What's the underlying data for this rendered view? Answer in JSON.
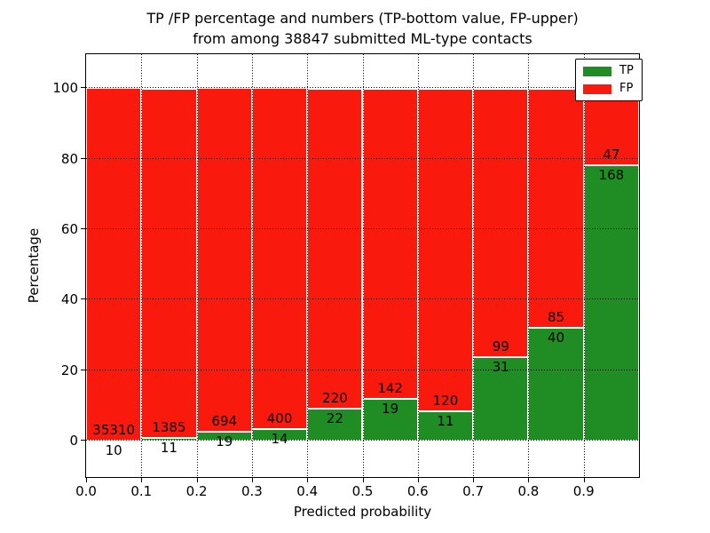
{
  "figure": {
    "title_line1": "TP /FP percentage and numbers (TP-bottom value, FP-upper)",
    "title_line2": "from among 38847 submitted ML-type contacts",
    "xlabel": "Predicted probability",
    "ylabel": "Percentage"
  },
  "legend": {
    "position": "upper-right",
    "items": [
      {
        "label": "TP",
        "color": "#208c24"
      },
      {
        "label": "FP",
        "color": "#fa1a0d"
      }
    ]
  },
  "chart_data": {
    "type": "bar",
    "stacked": true,
    "normalized_to_percent": true,
    "title": "TP /FP percentage and numbers (TP-bottom value, FP-upper)\nfrom among 38847 submitted ML-type contacts",
    "xlabel": "Predicted probability",
    "ylabel": "Percentage",
    "total_submitted_contacts": 38847,
    "xlim": [
      0.0,
      1.0
    ],
    "ylim": [
      -10.3,
      109.7
    ],
    "bin_width": 0.1,
    "x_tick_labels": [
      "0.0",
      "0.1",
      "0.2",
      "0.3",
      "0.4",
      "0.5",
      "0.6",
      "0.7",
      "0.8",
      "0.9"
    ],
    "y_ticks": [
      0,
      20,
      40,
      60,
      80,
      100
    ],
    "grid": {
      "style": "dotted",
      "color": "#000000",
      "over_bars": true
    },
    "bar_edge_color": "#ffffff",
    "series": [
      {
        "name": "TP",
        "color": "#208c24",
        "counts": [
          10,
          11,
          19,
          14,
          22,
          19,
          11,
          31,
          40,
          168
        ]
      },
      {
        "name": "FP",
        "color": "#fa1a0d",
        "counts": [
          35310,
          1385,
          694,
          400,
          220,
          142,
          120,
          99,
          85,
          47
        ]
      }
    ],
    "bins": [
      {
        "range": "0.0-0.1",
        "tp": 10,
        "fp": 35310
      },
      {
        "range": "0.1-0.2",
        "tp": 11,
        "fp": 1385
      },
      {
        "range": "0.2-0.3",
        "tp": 19,
        "fp": 694
      },
      {
        "range": "0.3-0.4",
        "tp": 14,
        "fp": 400
      },
      {
        "range": "0.4-0.5",
        "tp": 22,
        "fp": 220
      },
      {
        "range": "0.5-0.6",
        "tp": 19,
        "fp": 142
      },
      {
        "range": "0.6-0.7",
        "tp": 11,
        "fp": 120
      },
      {
        "range": "0.7-0.8",
        "tp": 31,
        "fp": 99
      },
      {
        "range": "0.8-0.9",
        "tp": 40,
        "fp": 85
      },
      {
        "range": "0.9-1.0",
        "tp": 168,
        "fp": 47
      }
    ]
  }
}
